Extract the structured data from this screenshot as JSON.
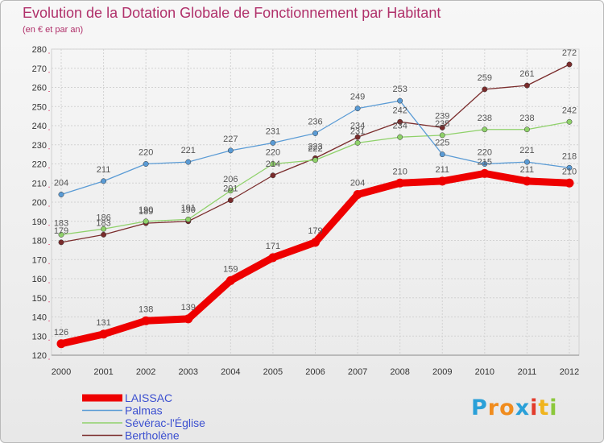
{
  "chart_data": {
    "type": "line",
    "title": "Evolution de la Dotation Globale de Fonctionnement par Habitant",
    "subtitle": "(en € et par an)",
    "xlabel": "",
    "ylabel": "",
    "x": [
      "2000",
      "2001",
      "2002",
      "2003",
      "2004",
      "2005",
      "2006",
      "2007",
      "2008",
      "2009",
      "2010",
      "2011",
      "2012"
    ],
    "ylim": [
      120,
      280
    ],
    "yticks": [
      "120",
      "130",
      "140",
      "150",
      "160",
      "170",
      "180",
      "190",
      "200",
      "210",
      "220",
      "230",
      "240",
      "250",
      "260",
      "270",
      "280"
    ],
    "grid": true,
    "legend": "bottom-left",
    "series": [
      {
        "name": "LAISSAC",
        "color": "#ee0000",
        "values": [
          126,
          131,
          138,
          139,
          159,
          171,
          179,
          204,
          210,
          211,
          215,
          211,
          210
        ]
      },
      {
        "name": "Palmas",
        "color": "#5a9bd5",
        "values": [
          204,
          211,
          220,
          221,
          227,
          231,
          236,
          249,
          253,
          225,
          220,
          221,
          218
        ]
      },
      {
        "name": "Sévérac-l'Église",
        "color": "#8fd16a",
        "values": [
          183,
          186,
          190,
          191,
          206,
          220,
          222,
          231,
          234,
          235,
          238,
          238,
          242
        ]
      },
      {
        "name": "Bertholène",
        "color": "#7a2c2c",
        "values": [
          179,
          183,
          189,
          190,
          201,
          214,
          223,
          234,
          242,
          239,
          259,
          261,
          272
        ]
      }
    ]
  },
  "logo": {
    "letters": [
      "P",
      "r",
      "o",
      "x",
      "i",
      "t",
      "i"
    ],
    "colors": [
      "#2aa0d8",
      "#f08c1e",
      "#f08c1e",
      "#2aa0d8",
      "#e23c2c",
      "#f0b41e",
      "#8cc83c"
    ]
  }
}
